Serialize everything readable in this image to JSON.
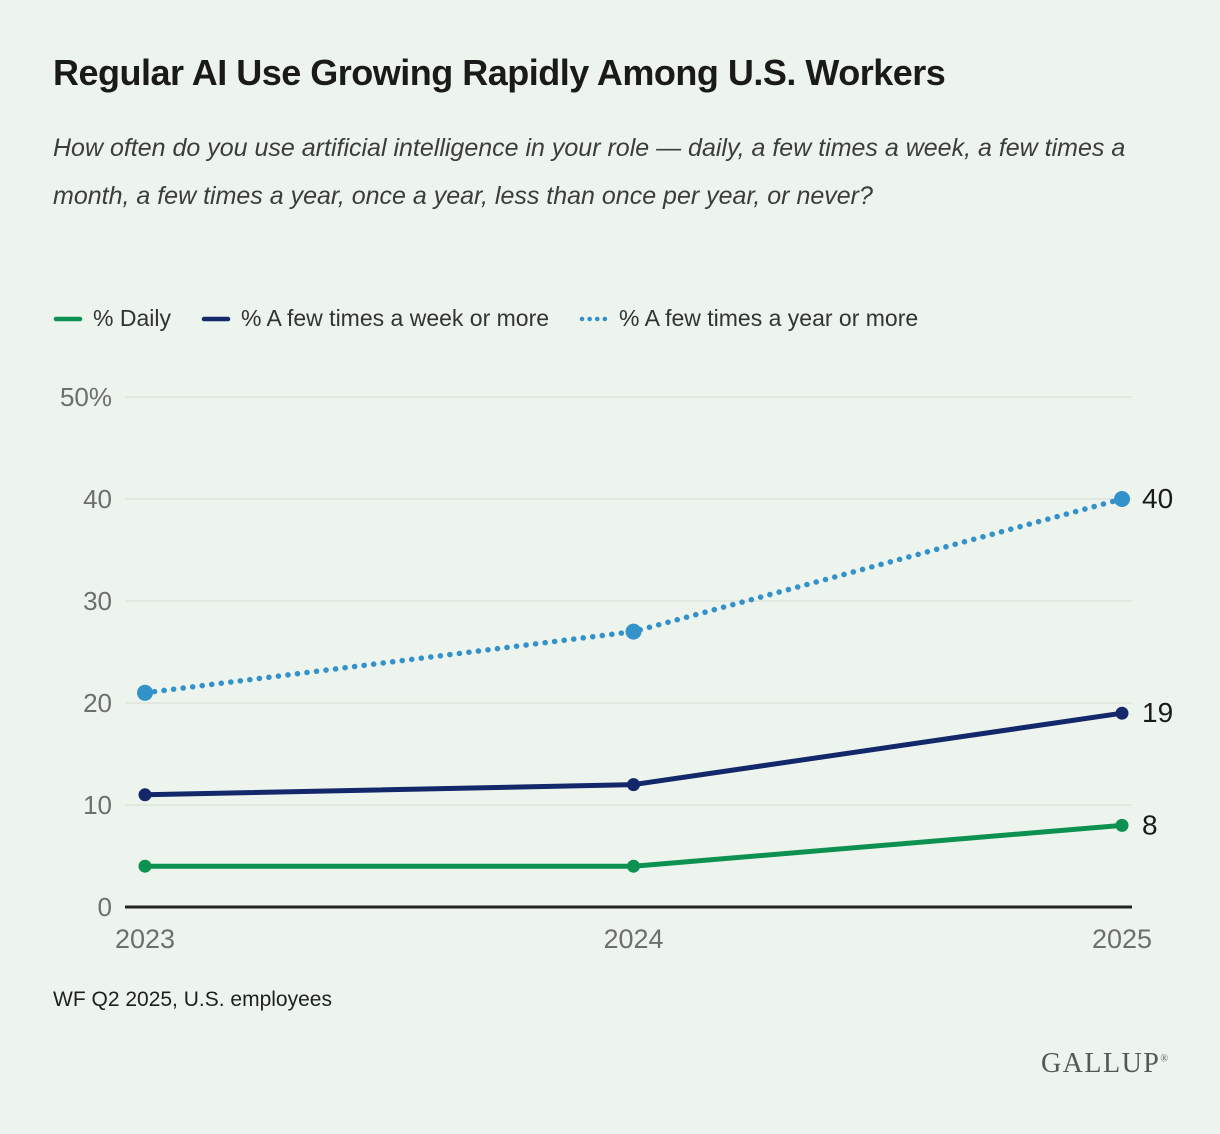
{
  "page": {
    "title": "Regular AI Use Growing Rapidly Among U.S. Workers",
    "subtitle": "How often do you use artificial intelligence in your role — daily, a few times a week, a few times a month, a few times a year, once a year, less than once per year, or never?",
    "footnote": "WF Q2 2025, U.S. employees",
    "logo": "GALLUP",
    "logo_registered": "®"
  },
  "colors": {
    "background": "#edf4ed",
    "grid": "#dce3dc",
    "axis": "#222222",
    "tick_label": "#6e6e6e",
    "end_label": "#1a1a1a",
    "green": "#0d9150",
    "navy": "#13276b",
    "blue": "#3392c9"
  },
  "chart_data": {
    "type": "line",
    "title": "Regular AI Use Growing Rapidly Among U.S. Workers",
    "categories": [
      "2023",
      "2024",
      "2025"
    ],
    "series": [
      {
        "name": "% Daily",
        "values": [
          4,
          4,
          8
        ],
        "color": "#0d9150",
        "style": "solid",
        "end_label": "8"
      },
      {
        "name": "% A few times a week or more",
        "values": [
          11,
          12,
          19
        ],
        "color": "#13276b",
        "style": "solid",
        "end_label": "19"
      },
      {
        "name": "% A few times a year or more",
        "values": [
          21,
          27,
          40
        ],
        "color": "#3392c9",
        "style": "dotted",
        "end_label": "40"
      }
    ],
    "ylim": [
      0,
      50
    ],
    "yticks": [
      0,
      10,
      20,
      30,
      40,
      50
    ],
    "ytick_labels": [
      "0",
      "10",
      "20",
      "30",
      "40",
      "50%"
    ],
    "grid": true,
    "legend_position": "top"
  }
}
